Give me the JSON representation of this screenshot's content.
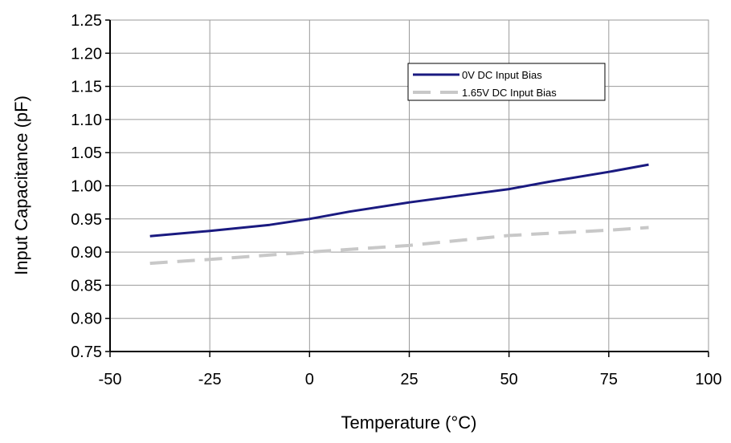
{
  "chart_data": {
    "type": "line",
    "xlabel": "Temperature (°C)",
    "ylabel": "Input Capacitance (pF)",
    "xlim": [
      -50,
      100
    ],
    "ylim": [
      0.75,
      1.25
    ],
    "x_ticks": [
      "-50",
      "-25",
      "0",
      "25",
      "50",
      "75",
      "100"
    ],
    "y_ticks": [
      "1.25",
      "1.20",
      "1.15",
      "1.10",
      "1.05",
      "1.00",
      "0.95",
      "0.90",
      "0.85",
      "0.80",
      "0.75"
    ],
    "grid": true,
    "legend_position": "top-right",
    "series": [
      {
        "name": "0V DC Input Bias",
        "color": "#1a1a80",
        "style": "solid",
        "x": [
          -40,
          -25,
          -10,
          0,
          10,
          25,
          40,
          50,
          60,
          75,
          85
        ],
        "y": [
          0.924,
          0.932,
          0.941,
          0.95,
          0.961,
          0.975,
          0.987,
          0.995,
          1.006,
          1.021,
          1.032
        ]
      },
      {
        "name": "1.65V DC Input Bias",
        "color": "#c8c8c8",
        "style": "dashed",
        "x": [
          -40,
          -25,
          0,
          25,
          50,
          75,
          85
        ],
        "y": [
          0.883,
          0.889,
          0.9,
          0.91,
          0.925,
          0.933,
          0.937
        ]
      }
    ]
  }
}
